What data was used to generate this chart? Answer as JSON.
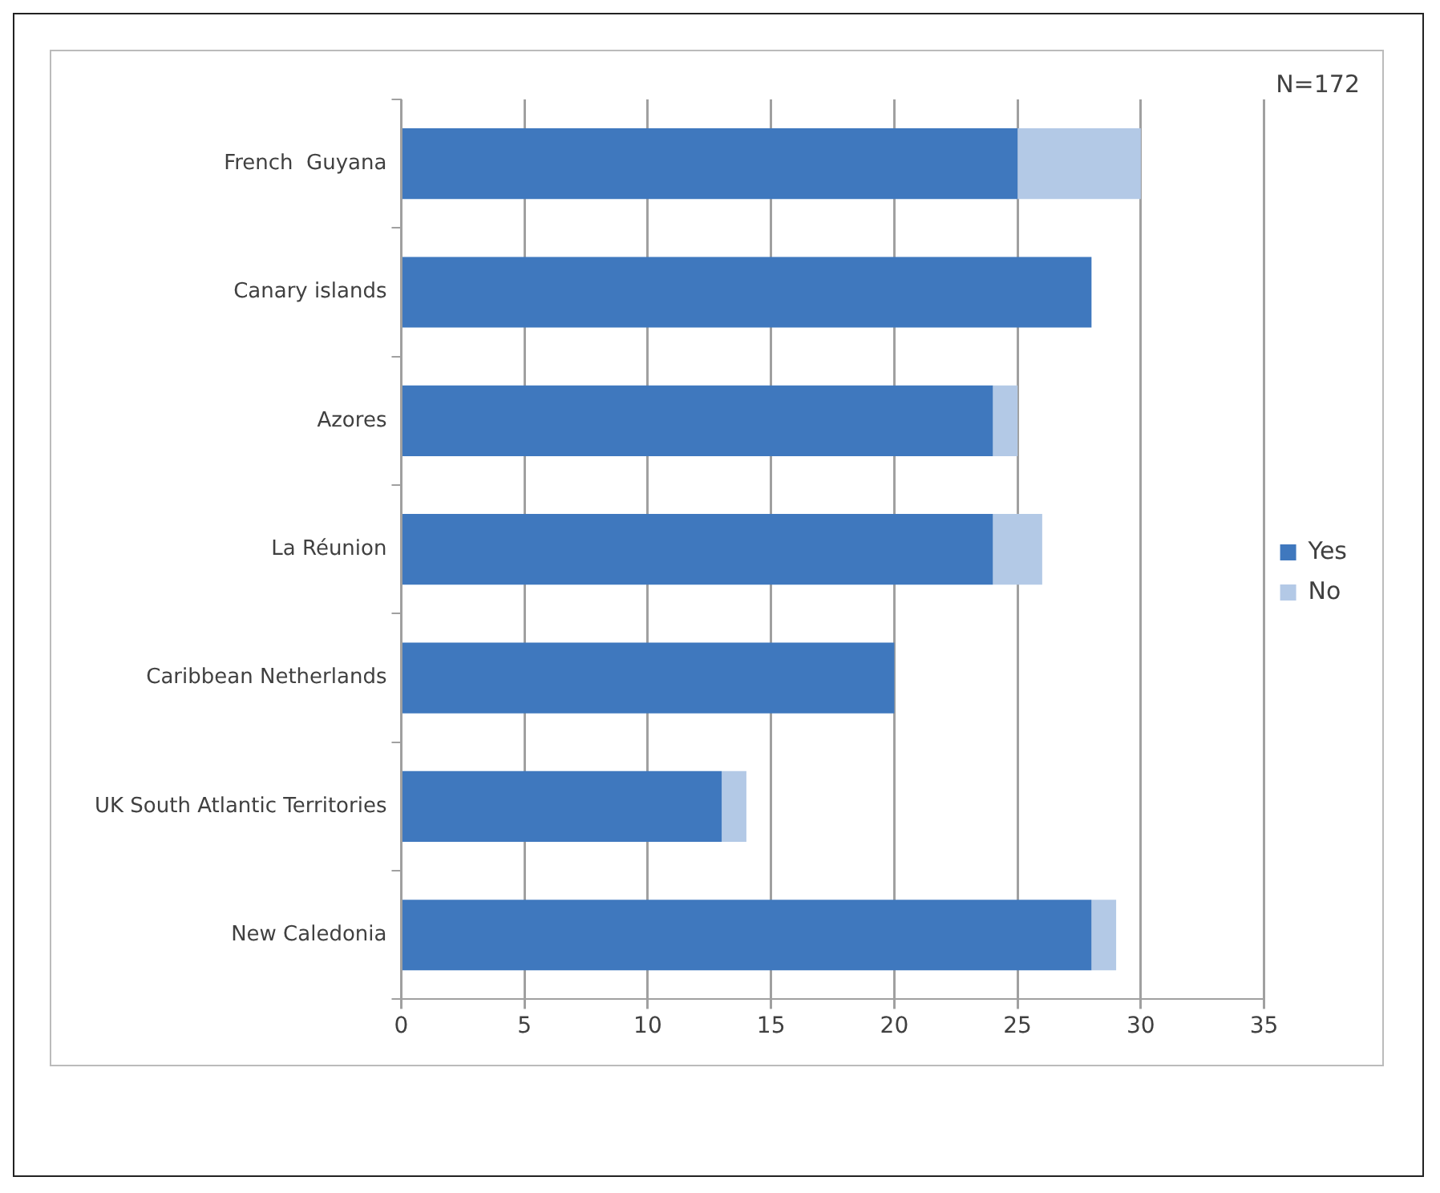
{
  "chart_data": {
    "type": "bar",
    "orientation": "horizontal",
    "stacked": true,
    "categories": [
      "French  Guyana",
      "Canary islands",
      "Azores",
      "La Réunion",
      "Caribbean Netherlands",
      "UK South Atlantic Territories",
      "New Caledonia"
    ],
    "series": [
      {
        "name": "Yes",
        "color": "#3f78be",
        "values": [
          25,
          28,
          24,
          24,
          20,
          13,
          28
        ]
      },
      {
        "name": "No",
        "color": "#b3c9e6",
        "values": [
          5,
          0,
          1,
          2,
          0,
          1,
          1
        ]
      }
    ],
    "xlim": [
      0,
      35
    ],
    "xticks": [
      0,
      5,
      10,
      15,
      20,
      25,
      30,
      35
    ],
    "grid": "x",
    "legend": "right",
    "annotations": [
      "N=172"
    ]
  }
}
